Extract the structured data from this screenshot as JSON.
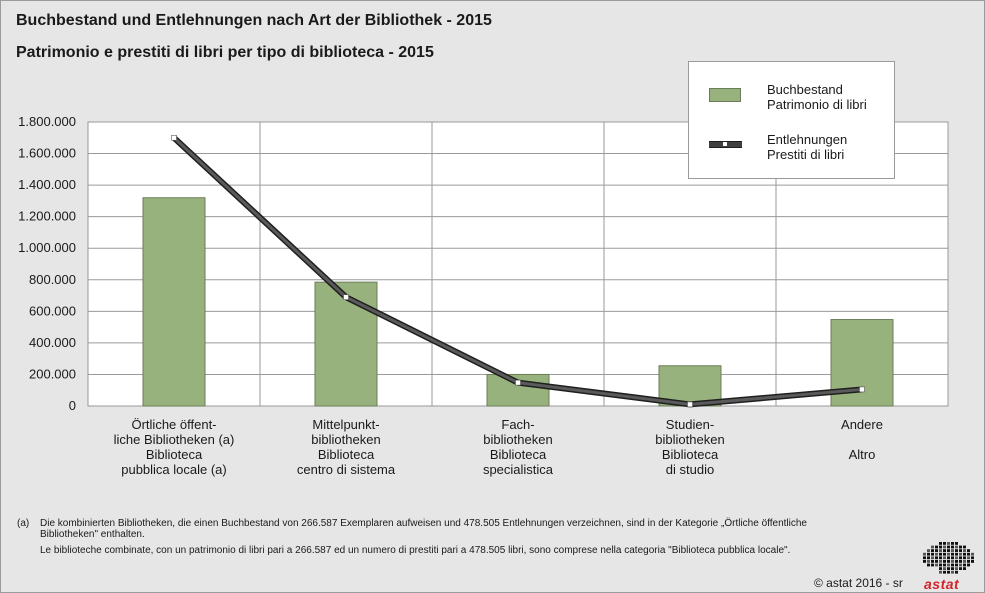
{
  "title_de": "Buchbestand und Entlehnungen nach Art der Bibliothek - 2015",
  "title_it": "Patrimonio e prestiti di libri per tipo di biblioteca - 2015",
  "legend": {
    "bar_de": "Buchbestand",
    "bar_it": "Patrimonio di libri",
    "line_de": "Entlehnungen",
    "line_it": "Prestiti di libri"
  },
  "chart_data": {
    "type": "bar",
    "categories": [
      "Örtliche öffent- liche Bibliotheken (a) / Biblioteca pubblica locale (a)",
      "Mittelpunkt- bibliotheken / Biblioteca centro di sistema",
      "Fach- bibliotheken / Biblioteca specialistica",
      "Studien- bibliotheken / Biblioteca di studio",
      "Andere / Altro"
    ],
    "category_labels": [
      {
        "line1": "Örtliche öffent-",
        "line2": "liche Bibliotheken (a)",
        "line3": "Biblioteca",
        "line4": "pubblica locale (a)"
      },
      {
        "line1": "Mittelpunkt-",
        "line2": "bibliotheken",
        "line3": "Biblioteca",
        "line4": "centro di sistema"
      },
      {
        "line1": "Fach-",
        "line2": "bibliotheken",
        "line3": "Biblioteca",
        "line4": "specialistica"
      },
      {
        "line1": "Studien-",
        "line2": "bibliotheken",
        "line3": "Biblioteca",
        "line4": "di studio"
      },
      {
        "line1": "Andere",
        "line2": "",
        "line3": "Altro",
        "line4": ""
      }
    ],
    "series": [
      {
        "name": "Buchbestand / Patrimonio di libri",
        "kind": "bar",
        "color": "#98b27e",
        "values": [
          1320000,
          785000,
          200000,
          255000,
          548000
        ]
      },
      {
        "name": "Entlehnungen / Prestiti di libri",
        "kind": "line",
        "color": "#404040",
        "values": [
          1700000,
          690000,
          148000,
          10000,
          105000
        ]
      }
    ],
    "ylim": [
      0,
      1800000
    ],
    "yticks": [
      0,
      200000,
      400000,
      600000,
      800000,
      1000000,
      1200000,
      1400000,
      1600000,
      1800000
    ],
    "ytick_labels": [
      "0",
      "200.000",
      "400.000",
      "600.000",
      "800.000",
      "1.000.000",
      "1.200.000",
      "1.400.000",
      "1.600.000",
      "1.800.000"
    ],
    "grid": true,
    "legend_position": "top-right"
  },
  "footnote": {
    "marker": "(a)",
    "line_de_1": "Die kombinierten Bibliotheken, die einen Buchbestand von 266.587 Exemplaren aufweisen und 478.505 Entlehnungen verzeichnen, sind in der Kategorie „Örtliche öffentliche",
    "line_de_2": "Bibliotheken\" enthalten.",
    "line_it": "Le biblioteche combinate, con un patrimonio di libri pari a 266.587 ed un numero di prestiti pari a 478.505 libri, sono comprese nella categoria \"Biblioteca pubblica locale\"."
  },
  "copyright": "© astat 2016 - sr",
  "logo_text": "astat",
  "colors": {
    "bar": "#98b27e",
    "line": "#404040",
    "grid": "#9a9a9a",
    "plot_bg": "#ffffff",
    "frame_bg": "#e6e6e6"
  }
}
